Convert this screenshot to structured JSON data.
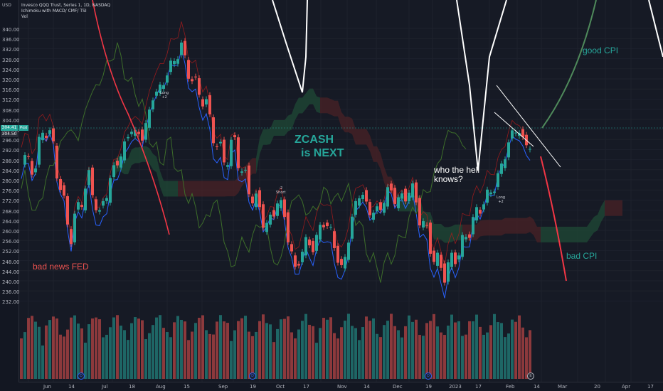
{
  "legend": {
    "symbol_line": "Invesco QQQ Trust, Series 1, 1D, NASDAQ",
    "indicators_line": "Ichimoku with MACD/ CMF/ TSI",
    "volume_line": "Vol"
  },
  "price_axis": {
    "unit": "USD",
    "ticks": [
      "340.00",
      "336.00",
      "332.00",
      "328.00",
      "324.00",
      "320.00",
      "316.00",
      "312.00",
      "308.00",
      "304.00",
      "300.00",
      "296.00",
      "292.00",
      "288.00",
      "284.00",
      "280.00",
      "276.00",
      "272.00",
      "268.00",
      "264.00",
      "260.00",
      "256.00",
      "252.00",
      "248.00",
      "244.00",
      "240.00",
      "236.00",
      "232.00"
    ],
    "current_price": "304.41",
    "current_time_label": "Post",
    "secondary_price": "304.50"
  },
  "time_axis": {
    "labels": [
      "Jun",
      "14",
      "Jul",
      "18",
      "Aug",
      "15",
      "Sep",
      "19",
      "Oct",
      "17",
      "Nov",
      "14",
      "Dec",
      "19",
      "2023",
      "17",
      "Feb",
      "14",
      "Mar",
      "20",
      "Apr",
      "17"
    ]
  },
  "annotations": {
    "zcash": "ZCASH",
    "is_next": "is  NEXT",
    "who_line1": "who the hell",
    "who_line2": "knows?",
    "good_cpi": "good CPI",
    "bad_cpi": "bad CPI",
    "bad_news_fed": "bad news FED"
  },
  "signals": {
    "long_1": "Long",
    "long_1_value": "+2",
    "short_1": "Short",
    "short_1_value": "-2",
    "long_2": "Long",
    "long_2_value": "+2"
  },
  "event_icons": {
    "dividend": "D",
    "earnings": "E"
  },
  "colors": {
    "background": "#161a25",
    "bull": "#26a69a",
    "bear": "#ef5350",
    "cloud_bull": "#1f4a35",
    "cloud_bear": "#4a2125",
    "tenkan": "#2962ff",
    "kijun": "#b71c1c",
    "chikou": "#3d6e2a",
    "drawing_white": "#ffffff",
    "drawing_green": "#4f8a5b",
    "drawing_red": "#f23645"
  }
}
